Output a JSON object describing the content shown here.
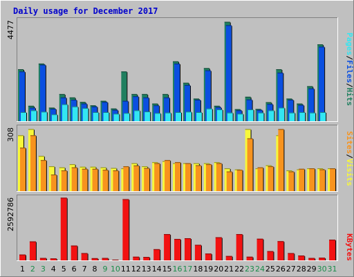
{
  "title": "Daily usage for December 2017",
  "colors": {
    "frame_bg": "#c0c0c0",
    "title": "#0000cc",
    "hits": "#1f7f5f",
    "files": "#0b4fe0",
    "pages": "#33e6f2",
    "visits": "#f7f73a",
    "sites": "#f7931e",
    "kbytes": "#f21212",
    "weekend_day": "#1a8c4a",
    "weekday_day": "#000000"
  },
  "legend": {
    "top": [
      "Pages",
      "/",
      "Files",
      "/",
      "Hits"
    ],
    "mid": [
      "Sites",
      "/",
      "Visits"
    ],
    "bot": [
      "KBytes"
    ]
  },
  "chart_data": [
    {
      "type": "bar",
      "panel": "hits-files-pages",
      "y_max_label": "4477",
      "ylim": [
        0,
        4477
      ],
      "categories": [
        "1",
        "2",
        "3",
        "4",
        "5",
        "6",
        "7",
        "8",
        "9",
        "10",
        "11",
        "12",
        "13",
        "14",
        "15",
        "16",
        "17",
        "18",
        "19",
        "20",
        "21",
        "22",
        "23",
        "24",
        "25",
        "26",
        "27",
        "28",
        "29",
        "30",
        "31"
      ],
      "weekend": [
        false,
        true,
        true,
        false,
        false,
        false,
        false,
        false,
        true,
        true,
        false,
        false,
        false,
        false,
        false,
        true,
        true,
        false,
        false,
        false,
        false,
        false,
        true,
        true,
        false,
        false,
        false,
        false,
        false,
        true,
        true
      ],
      "series": [
        {
          "name": "Hits",
          "values": [
            2300,
            680,
            2550,
            600,
            1200,
            1050,
            850,
            700,
            900,
            560,
            2200,
            1200,
            1200,
            780,
            1200,
            2650,
            1700,
            1000,
            2350,
            680,
            4400,
            530,
            1080,
            540,
            840,
            2300,
            1000,
            780,
            1550,
            3400,
            0
          ]
        },
        {
          "name": "Files",
          "values": [
            2200,
            600,
            2500,
            550,
            1050,
            950,
            780,
            650,
            850,
            500,
            900,
            1100,
            1050,
            700,
            1050,
            2550,
            1600,
            950,
            2250,
            620,
            4250,
            480,
            960,
            500,
            760,
            2150,
            950,
            720,
            1450,
            3300,
            0
          ]
        },
        {
          "name": "Pages",
          "values": [
            400,
            480,
            420,
            300,
            750,
            650,
            580,
            400,
            400,
            330,
            360,
            480,
            430,
            360,
            380,
            400,
            420,
            400,
            560,
            520,
            380,
            330,
            520,
            380,
            480,
            600,
            380,
            400,
            380,
            400,
            0
          ]
        }
      ]
    },
    {
      "type": "bar",
      "panel": "visits-sites",
      "y_max_label": "308",
      "ylim": [
        0,
        308
      ],
      "series": [
        {
          "name": "Visits",
          "values": [
            270,
            300,
            170,
            120,
            115,
            130,
            118,
            118,
            115,
            112,
            110,
            135,
            120,
            140,
            145,
            135,
            135,
            135,
            135,
            140,
            110,
            105,
            300,
            110,
            125,
            270,
            100,
            105,
            110,
            110,
            110
          ]
        },
        {
          "name": "Sites",
          "values": [
            210,
            270,
            150,
            80,
            100,
            115,
            108,
            108,
            103,
            100,
            120,
            124,
            112,
            135,
            150,
            140,
            135,
            125,
            130,
            135,
            95,
            103,
            255,
            115,
            120,
            300,
            95,
            108,
            110,
            105,
            110
          ]
        }
      ]
    },
    {
      "type": "bar",
      "panel": "kbytes",
      "y_max_label": "2592786",
      "ylim": [
        0,
        2592786
      ],
      "series": [
        {
          "name": "KBytes",
          "values": [
            240000,
            780000,
            100000,
            80000,
            2580000,
            610000,
            300000,
            90000,
            100000,
            30000,
            2520000,
            150000,
            140000,
            460000,
            1080000,
            880000,
            910000,
            640000,
            280000,
            950000,
            180000,
            1080000,
            150000,
            890000,
            380000,
            790000,
            300000,
            200000,
            100000,
            110000,
            850000
          ]
        }
      ]
    }
  ]
}
